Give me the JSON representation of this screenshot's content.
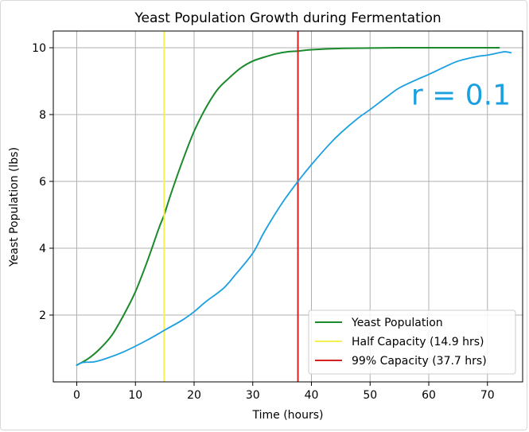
{
  "chart_data": {
    "type": "line",
    "title": "Yeast Population Growth during Fermentation",
    "xlabel": "Time (hours)",
    "ylabel": "Yeast Population (lbs)",
    "xlim": [
      -4,
      76
    ],
    "ylim": [
      0,
      10.5
    ],
    "xticks": [
      0,
      10,
      20,
      30,
      40,
      50,
      60,
      70
    ],
    "yticks": [
      2,
      4,
      6,
      8,
      10
    ],
    "grid": true,
    "legend_position": "lower-right",
    "series": [
      {
        "name": "Yeast Population",
        "color": "#1a8a2b",
        "kind": "logistic",
        "x": [
          0,
          2,
          4,
          6,
          8,
          10,
          12,
          14,
          14.9,
          16,
          18,
          20,
          22,
          24,
          26,
          28,
          30,
          32,
          34,
          36,
          37.7,
          40,
          45,
          50,
          55,
          60,
          65,
          70,
          72
        ],
        "y": [
          0.5,
          0.7,
          1.0,
          1.4,
          2.0,
          2.7,
          3.6,
          4.6,
          5.0,
          5.6,
          6.6,
          7.5,
          8.2,
          8.75,
          9.1,
          9.4,
          9.6,
          9.72,
          9.82,
          9.88,
          9.9,
          9.94,
          9.98,
          9.99,
          10.0,
          10.0,
          10.0,
          10.0,
          10.0
        ]
      },
      {
        "name": "Half Capacity (14.9 hrs)",
        "color": "#f5ef52",
        "kind": "vline",
        "x": 14.9
      },
      {
        "name": "99% Capacity (37.7 hrs)",
        "color": "#d42020",
        "kind": "vline",
        "x": 37.7
      },
      {
        "name": "",
        "color": "#1a9fe0",
        "kind": "handdrawn",
        "x": [
          0,
          1,
          3,
          5,
          8,
          12,
          15,
          18,
          20,
          22,
          25,
          27,
          30,
          32,
          35,
          37.7,
          40,
          43,
          45,
          48,
          50,
          53,
          55,
          58,
          60,
          63,
          65,
          68,
          70,
          72,
          73,
          74
        ],
        "y": [
          0.5,
          0.58,
          0.6,
          0.7,
          0.9,
          1.25,
          1.55,
          1.85,
          2.1,
          2.4,
          2.8,
          3.2,
          3.85,
          4.5,
          5.35,
          6.0,
          6.5,
          7.1,
          7.45,
          7.9,
          8.15,
          8.55,
          8.8,
          9.05,
          9.2,
          9.45,
          9.6,
          9.73,
          9.78,
          9.85,
          9.88,
          9.85
        ]
      }
    ],
    "annotations": [
      {
        "text": "r = 0.1",
        "x": 57,
        "y": 8.3,
        "color": "#1a9fe0"
      }
    ]
  }
}
